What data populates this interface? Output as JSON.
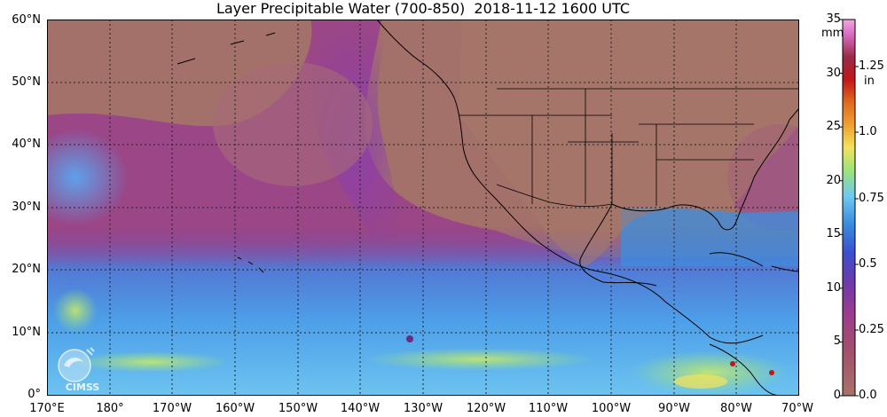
{
  "title": "Layer Precipitable Water (700-850)  2018-11-12 1600 UTC",
  "lat_labels": [
    "60°N",
    "50°N",
    "40°N",
    "30°N",
    "20°N",
    "10°N",
    "0°"
  ],
  "lon_labels": [
    "170°E",
    "180°",
    "170°W",
    "160°W",
    "150°W",
    "140°W",
    "130°W",
    "120°W",
    "110°W",
    "100°W",
    "90°W",
    "80°W",
    "70°W"
  ],
  "colorbar": {
    "mm_unit": "mm",
    "in_unit": "in",
    "mm_ticks": [
      "35",
      "30",
      "25",
      "20",
      "15",
      "10",
      "5",
      "0"
    ],
    "in_ticks": [
      "1.25",
      "1.0",
      "0.75",
      "0.5",
      "0.25",
      "0.0"
    ]
  },
  "logo_text": "CIMSS",
  "colors": {
    "dry": "#a8746c",
    "moderate": "#9a3e8c",
    "purple": "#6e3aa8",
    "blue": "#3a8fe0",
    "cyan": "#6fc9f0",
    "green": "#9de37a",
    "yellow": "#f5e35a",
    "orange": "#e06a1c",
    "red": "#c01818",
    "pink": "#e77fd0",
    "grid": "#222222",
    "coast": "#000000"
  }
}
